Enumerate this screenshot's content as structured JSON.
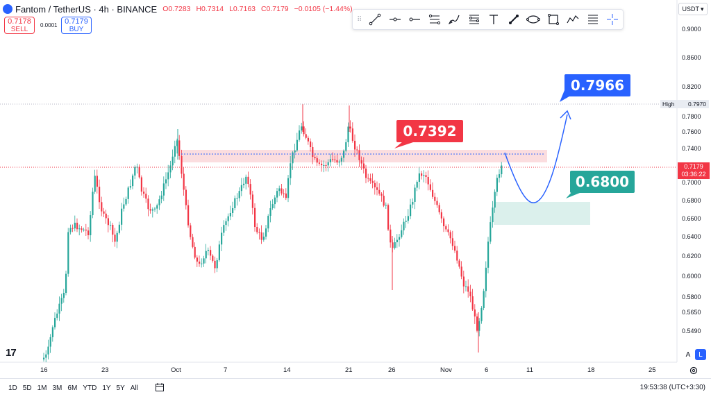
{
  "header": {
    "symbol": "Fantom / TetherUS · 4h · BINANCE",
    "open": "O0.7283",
    "high": "H0.7314",
    "low": "L0.7163",
    "close": "C0.7179",
    "change": "−0.0105 (−1.44%)"
  },
  "trade": {
    "sell_price": "0.7178",
    "sell_label": "SELL",
    "spread": "0.0001",
    "buy_price": "0.7179",
    "buy_label": "BUY"
  },
  "toolbar": {
    "tools": [
      "trend-line-icon",
      "horizontal-ray-icon",
      "ray-icon",
      "parallel-channel-icon",
      "brush-icon",
      "fib-retracement-icon",
      "text-icon",
      "arrow-icon",
      "ellipse-icon",
      "rectangle-icon",
      "path-icon",
      "long-position-icon",
      "crosshair-icon"
    ]
  },
  "currency": "USDT",
  "price_axis": {
    "labels": [
      "0.9000",
      "0.8600",
      "0.8200",
      "0.7800",
      "0.7600",
      "0.7400",
      "0.7000",
      "0.6800",
      "0.6600",
      "0.6400",
      "0.6200",
      "0.6000",
      "0.5800",
      "0.5650",
      "0.5490"
    ],
    "high_label": "High",
    "high_value": "0.7970",
    "current_price": "0.7179",
    "countdown": "03:36:22"
  },
  "time_axis": {
    "labels": [
      "16",
      "23",
      "Oct",
      "7",
      "14",
      "21",
      "26",
      "Nov",
      "6",
      "11",
      "18",
      "25"
    ]
  },
  "annotations": {
    "resistance": "0.7392",
    "target": "0.7966",
    "support": "0.6800"
  },
  "bottom": {
    "ranges": [
      "1D",
      "5D",
      "1M",
      "3M",
      "6M",
      "YTD",
      "1Y",
      "5Y",
      "All"
    ],
    "time": "19:53:38 (UTC+3:30)",
    "scale_auto": "A",
    "scale_log": "L"
  },
  "colors": {
    "up": "#26a69a",
    "down": "#f23645",
    "accent": "#2962ff"
  }
}
